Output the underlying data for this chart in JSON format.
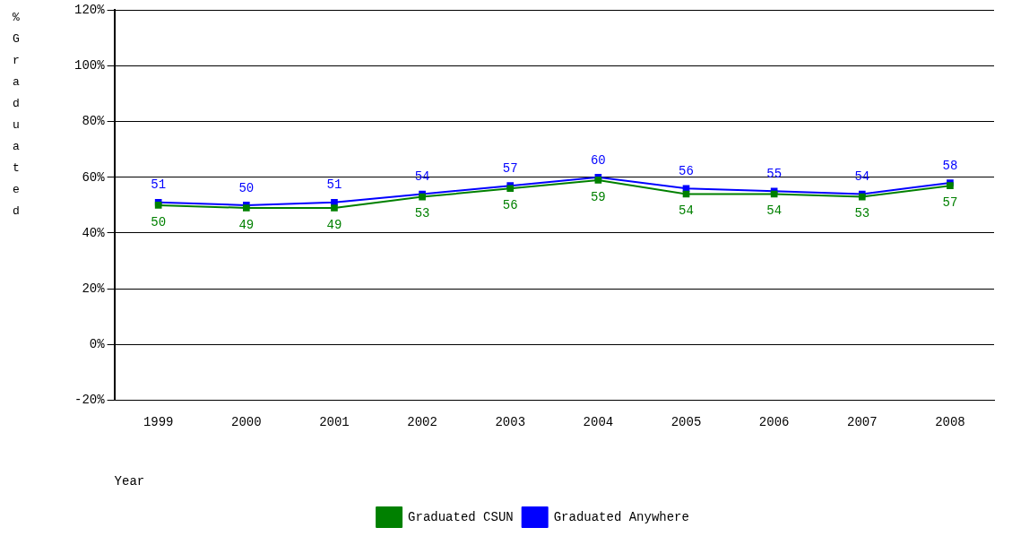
{
  "chart_data": {
    "type": "line",
    "xlabel": "Year",
    "ylabel": "% Graduated",
    "categories": [
      "1999",
      "2000",
      "2001",
      "2002",
      "2003",
      "2004",
      "2005",
      "2006",
      "2007",
      "2008"
    ],
    "series": [
      {
        "name": "Graduated CSUN",
        "color": "#008000",
        "values": [
          50,
          49,
          49,
          53,
          56,
          59,
          54,
          54,
          53,
          57
        ]
      },
      {
        "name": "Graduated Anywhere",
        "color": "#0000ff",
        "values": [
          51,
          50,
          51,
          54,
          57,
          60,
          56,
          55,
          54,
          58
        ]
      }
    ],
    "ylim": [
      -20,
      120
    ],
    "yticks": [
      {
        "value": -20,
        "label": "-20%"
      },
      {
        "value": 0,
        "label": "0%"
      },
      {
        "value": 20,
        "label": "20%"
      },
      {
        "value": 40,
        "label": "40%"
      },
      {
        "value": 60,
        "label": "60%"
      },
      {
        "value": 80,
        "label": "80%"
      },
      {
        "value": 100,
        "label": "100%"
      },
      {
        "value": 120,
        "label": "120%"
      }
    ],
    "grid": "y",
    "legend": "bottom",
    "marker": "square",
    "line_style": "solid",
    "data_labels": true
  }
}
